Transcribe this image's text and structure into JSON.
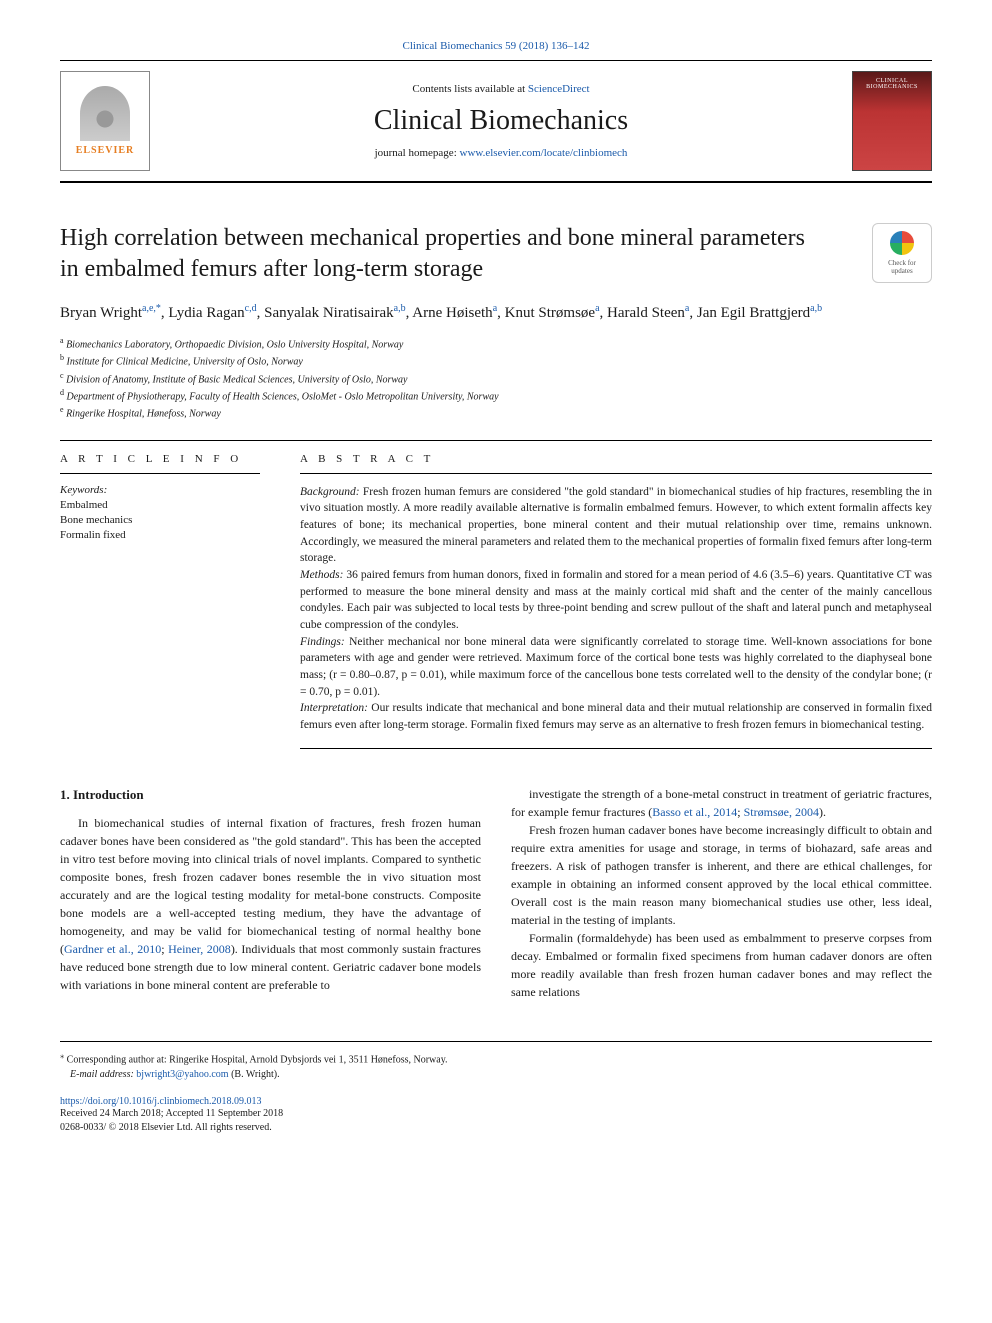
{
  "header": {
    "top_citation": "Clinical Biomechanics 59 (2018) 136–142",
    "contents_prefix": "Contents lists available at ",
    "contents_link": "ScienceDirect",
    "journal_title": "Clinical Biomechanics",
    "homepage_prefix": "journal homepage: ",
    "homepage_link": "www.elsevier.com/locate/clinbiomech",
    "publisher_word": "ELSEVIER",
    "cover_text": "CLINICAL BIOMECHANICS"
  },
  "check_updates": {
    "line1": "Check for",
    "line2": "updates"
  },
  "title": "High correlation between mechanical properties and bone mineral parameters in embalmed femurs after long-term storage",
  "authors_html": "Bryan Wright<sup>a,e,*</sup>, Lydia Ragan<sup>c,d</sup>, Sanyalak Niratisairak<sup>a,b</sup>, Arne Høiseth<sup>a</sup>, Knut Strømsøe<sup>a</sup>, Harald Steen<sup>a</sup>, Jan Egil Brattgjerd<sup>a,b</sup>",
  "affiliations": [
    {
      "key": "a",
      "text": "Biomechanics Laboratory, Orthopaedic Division, Oslo University Hospital, Norway"
    },
    {
      "key": "b",
      "text": "Institute for Clinical Medicine, University of Oslo, Norway"
    },
    {
      "key": "c",
      "text": "Division of Anatomy, Institute of Basic Medical Sciences, University of Oslo, Norway"
    },
    {
      "key": "d",
      "text": "Department of Physiotherapy, Faculty of Health Sciences, OsloMet - Oslo Metropolitan University, Norway"
    },
    {
      "key": "e",
      "text": "Ringerike Hospital, Hønefoss, Norway"
    }
  ],
  "article_info": {
    "heading": "A R T I C L E  I N F O",
    "keywords_label": "Keywords:",
    "keywords": [
      "Embalmed",
      "Bone mechanics",
      "Formalin fixed"
    ]
  },
  "abstract": {
    "heading": "A B S T R A C T",
    "sections": [
      {
        "label": "Background:",
        "text": " Fresh frozen human femurs are considered \"the gold standard\" in biomechanical studies of hip fractures, resembling the in vivo situation mostly. A more readily available alternative is formalin embalmed femurs. However, to which extent formalin affects key features of bone; its mechanical properties, bone mineral content and their mutual relationship over time, remains unknown. Accordingly, we measured the mineral parameters and related them to the mechanical properties of formalin fixed femurs after long-term storage."
      },
      {
        "label": "Methods:",
        "text": " 36 paired femurs from human donors, fixed in formalin and stored for a mean period of 4.6 (3.5–6) years. Quantitative CT was performed to measure the bone mineral density and mass at the mainly cortical mid shaft and the center of the mainly cancellous condyles. Each pair was subjected to local tests by three-point bending and screw pullout of the shaft and lateral punch and metaphyseal cube compression of the condyles."
      },
      {
        "label": "Findings:",
        "text": " Neither mechanical nor bone mineral data were significantly correlated to storage time. Well-known associations for bone parameters with age and gender were retrieved. Maximum force of the cortical bone tests was highly correlated to the diaphyseal bone mass; (r = 0.80–0.87, p = 0.01), while maximum force of the cancellous bone tests correlated well to the density of the condylar bone; (r = 0.70, p = 0.01)."
      },
      {
        "label": "Interpretation:",
        "text": " Our results indicate that mechanical and bone mineral data and their mutual relationship are conserved in formalin fixed femurs even after long-term storage. Formalin fixed femurs may serve as an alternative to fresh frozen femurs in biomechanical testing."
      }
    ]
  },
  "body": {
    "section_number": "1.",
    "section_title": "Introduction",
    "col1": [
      "In biomechanical studies of internal fixation of fractures, fresh frozen human cadaver bones have been considered as \"the gold standard\". This has been the accepted in vitro test before moving into clinical trials of novel implants. Compared to synthetic composite bones, fresh frozen cadaver bones resemble the in vivo situation most accurately and are the logical testing modality for metal-bone constructs. Composite bone models are a well-accepted testing medium, they have the advantage of homogeneity, and may be valid for biomechanical testing of normal healthy bone (<span class=\"cite\">Gardner et al., 2010</span>; <span class=\"cite\">Heiner, 2008</span>). Individuals that most commonly sustain fractures have reduced bone strength due to low mineral content. Geriatric cadaver bone models with variations in bone mineral content are preferable to"
    ],
    "col2": [
      "investigate the strength of a bone-metal construct in treatment of geriatric fractures, for example femur fractures (<span class=\"cite\">Basso et al., 2014</span>; <span class=\"cite\">Strømsøe, 2004</span>).",
      "Fresh frozen human cadaver bones have become increasingly difficult to obtain and require extra amenities for usage and storage, in terms of biohazard, safe areas and freezers. A risk of pathogen transfer is inherent, and there are ethical challenges, for example in obtaining an informed consent approved by the local ethical committee. Overall cost is the main reason many biomechanical studies use other, less ideal, material in the testing of implants.",
      "Formalin (formaldehyde) has been used as embalmment to preserve corpses from decay. Embalmed or formalin fixed specimens from human cadaver donors are often more readily available than fresh frozen human cadaver bones and may reflect the same relations"
    ]
  },
  "footnotes": {
    "corresponding": "Corresponding author at: Ringerike Hospital, Arnold Dybsjords vei 1, 3511 Hønefoss, Norway.",
    "email_label": "E-mail address: ",
    "email": "bjwright3@yahoo.com",
    "email_name": " (B. Wright)."
  },
  "footer": {
    "doi": "https://doi.org/10.1016/j.clinbiomech.2018.09.013",
    "received": "Received 24 March 2018; Accepted 11 September 2018",
    "copyright": "0268-0033/ © 2018 Elsevier Ltd. All rights reserved."
  },
  "colors": {
    "link": "#1a5aaa",
    "publisher": "#e67e22",
    "cover_bg": "#b33"
  }
}
